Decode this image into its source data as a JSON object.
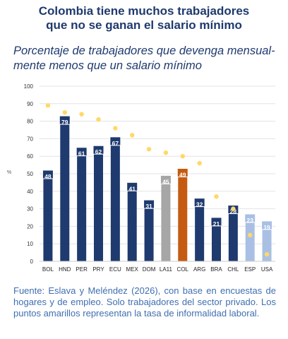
{
  "header": {
    "title_line1": "Colombia tiene muchos trabajadores",
    "title_line2": "que no se ganan el salario mínimo",
    "subtitle_line1": "Porcentaje de trabajadores que devenga mensual-",
    "subtitle_line2": "mente menos que un salario mínimo"
  },
  "footer": {
    "source_text": "Fuente: Eslava y Meléndez (2026), con base en encuestas de hogares y de empleo. Solo trabajadores del sector privado. Los puntos amarillos representan la tasa de informalidad laboral."
  },
  "colors": {
    "title": "#1f3a6e",
    "bar_default": "#1f3a6e",
    "bar_latam_avg": "#a6a6a6",
    "bar_colombia": "#c55a11",
    "bar_developed": "#a9c0e4",
    "informality_dot": "#ffd966",
    "grid": "#e3e3e3",
    "source_text": "#3f6fb0"
  },
  "chart_data": {
    "type": "bar",
    "title": "Porcentaje de trabajadores que devenga mensualmente menos que un salario mínimo",
    "ylabel": "%",
    "ylim": [
      0,
      100
    ],
    "yticks": [
      0,
      10,
      20,
      30,
      40,
      50,
      60,
      70,
      80,
      90,
      100
    ],
    "grid": true,
    "categories": [
      "BOL",
      "HND",
      "PER",
      "PRY",
      "ECU",
      "MEX",
      "DOM",
      "LA11",
      "COL",
      "ARG",
      "BRA",
      "CHL",
      "ESP",
      "USA"
    ],
    "series": [
      {
        "values": [
          48,
          79,
          61,
          62,
          67,
          41,
          31,
          45,
          49,
          32,
          21,
          28,
          23,
          19
        ],
        "data_labels": true,
        "bar_groups": [
          "default",
          "default",
          "default",
          "default",
          "default",
          "default",
          "default",
          "latam_avg",
          "colombia",
          "default",
          "default",
          "default",
          "developed",
          "developed"
        ]
      },
      {
        "type": "scatter",
        "values": [
          89,
          85,
          84,
          81,
          76,
          72,
          64,
          62,
          60,
          56,
          37,
          30,
          15,
          4
        ]
      }
    ]
  }
}
